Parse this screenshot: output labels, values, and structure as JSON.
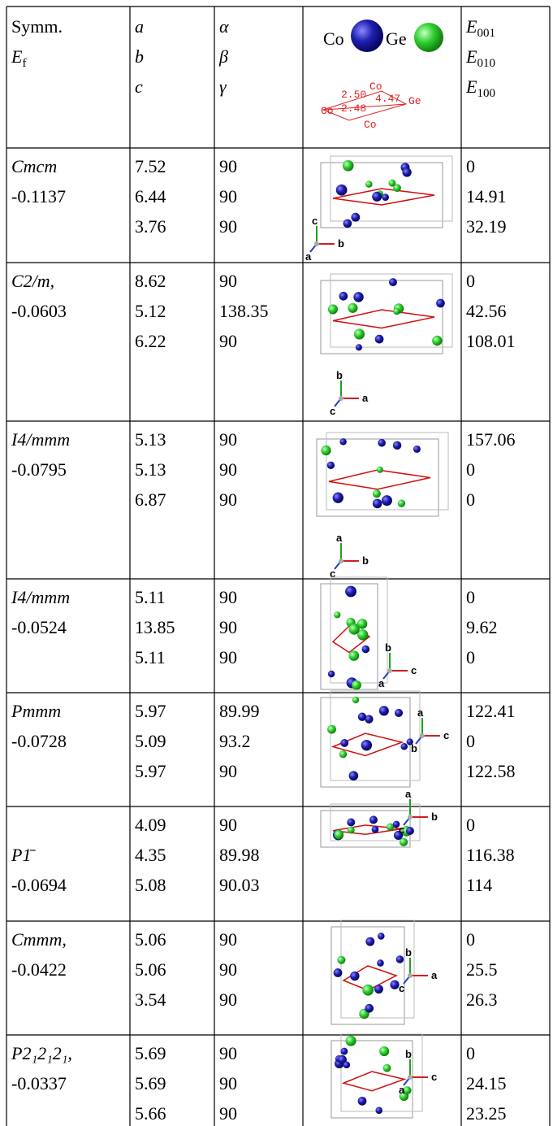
{
  "header": {
    "symm": "Symm.",
    "ef": {
      "main": "E",
      "sub": "f"
    },
    "lattice": [
      "a",
      "b",
      "c"
    ],
    "angles": [
      "α",
      "β",
      "γ"
    ],
    "legend": {
      "co": "Co",
      "ge": "Ge"
    },
    "bond_labels": [
      "2.50",
      "Co",
      "4.47",
      "Ge",
      "2.48",
      "Co",
      "Co"
    ],
    "energies": [
      {
        "main": "E",
        "sub": "001"
      },
      {
        "main": "E",
        "sub": "010"
      },
      {
        "main": "E",
        "sub": "100"
      }
    ]
  },
  "rows": [
    {
      "symm": "Cmcm",
      "ef": "-0.1137",
      "lattice": [
        "7.52",
        "6.44",
        "3.76"
      ],
      "angles": [
        "90",
        "90",
        "90"
      ],
      "axes": [
        "c",
        "b",
        "a"
      ],
      "energies": [
        "0",
        "14.91",
        "32.19"
      ]
    },
    {
      "symm": "C2/m,",
      "ef": "-0.0603",
      "lattice": [
        "8.62",
        "5.12",
        "6.22"
      ],
      "angles": [
        "90",
        "138.35",
        "90"
      ],
      "axes": [
        "b",
        "a",
        "c"
      ],
      "energies": [
        "0",
        "42.56",
        "108.01"
      ]
    },
    {
      "symm": "I4/mmm",
      "ef": "-0.0795",
      "lattice": [
        "5.13",
        "5.13",
        "6.87"
      ],
      "angles": [
        "90",
        "90",
        "90"
      ],
      "axes": [
        "a",
        "b",
        "c"
      ],
      "energies": [
        "157.06",
        "0",
        "0"
      ]
    },
    {
      "symm": "I4/mmm",
      "ef": "-0.0524",
      "lattice": [
        "5.11",
        "13.85",
        "5.11"
      ],
      "angles": [
        "90",
        "90",
        "90"
      ],
      "axes": [
        "b",
        "c",
        "a"
      ],
      "energies": [
        "0",
        "9.62",
        "0"
      ]
    },
    {
      "symm": "Pmmm",
      "ef": "-0.0728",
      "lattice": [
        "5.97",
        "5.09",
        "5.97"
      ],
      "angles": [
        "89.99",
        "93.2",
        "90"
      ],
      "axes": [
        "a",
        "c",
        "b"
      ],
      "energies": [
        "122.41",
        "0",
        "122.58"
      ]
    },
    {
      "symm": "P1̄",
      "ef": "-0.0694",
      "lattice": [
        "4.09",
        "4.35",
        "5.08"
      ],
      "angles": [
        "90",
        "89.98",
        "90.03"
      ],
      "axes": [
        "a",
        "b",
        "c"
      ],
      "energies": [
        "0",
        "116.38",
        "114"
      ]
    },
    {
      "symm": "Cmmm,",
      "ef": "-0.0422",
      "lattice": [
        "5.06",
        "5.06",
        "3.54"
      ],
      "angles": [
        "90",
        "90",
        "90"
      ],
      "axes": [
        "b",
        "a",
        "c"
      ],
      "energies": [
        "0",
        "25.5",
        "26.3"
      ]
    },
    {
      "symm": "P2₁2₁2₁,",
      "ef": "-0.0337",
      "lattice": [
        "5.69",
        "5.69",
        "5.66"
      ],
      "angles": [
        "90",
        "90",
        "90"
      ],
      "axes": [
        "b",
        "c",
        "a"
      ],
      "energies": [
        "0",
        "24.15",
        "23.25"
      ]
    }
  ]
}
